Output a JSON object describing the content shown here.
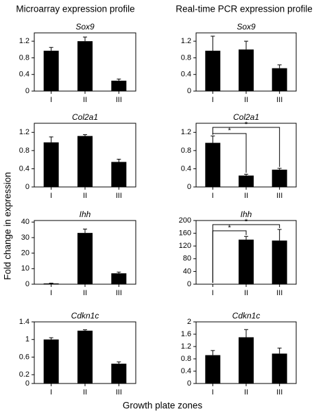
{
  "figure": {
    "column_titles": [
      "Microarray expression profile",
      "Real-time PCR expression profile"
    ],
    "ylabel": "Fold change in expression",
    "xlabel": "Growth plate zones"
  },
  "chart_data": [
    {
      "type": "bar",
      "title": "Sox9",
      "categories": [
        "I",
        "II",
        "III"
      ],
      "values": [
        0.97,
        1.2,
        0.25
      ],
      "errors": [
        0.08,
        0.1,
        0.04
      ],
      "color": "#000000",
      "ylim": [
        0,
        1.4
      ],
      "yticks": [
        0,
        0.4,
        0.8,
        1.2
      ]
    },
    {
      "type": "bar",
      "title": "Sox9",
      "categories": [
        "I",
        "II",
        "III"
      ],
      "values": [
        0.97,
        1.0,
        0.55
      ],
      "errors": [
        0.35,
        0.2,
        0.08
      ],
      "color": "#000000",
      "ylim": [
        0,
        1.4
      ],
      "yticks": [
        0,
        0.4,
        0.8,
        1.2
      ]
    },
    {
      "type": "bar",
      "title": "Col2a1",
      "categories": [
        "I",
        "II",
        "III"
      ],
      "values": [
        0.98,
        1.12,
        0.55
      ],
      "errors": [
        0.12,
        0.03,
        0.06
      ],
      "color": "#000000",
      "ylim": [
        0,
        1.4
      ],
      "yticks": [
        0,
        0.4,
        0.8,
        1.2
      ]
    },
    {
      "type": "bar",
      "title": "Col2a1",
      "categories": [
        "I",
        "II",
        "III"
      ],
      "values": [
        0.97,
        0.25,
        0.38
      ],
      "errors": [
        0.15,
        0.03,
        0.03
      ],
      "color": "#000000",
      "ylim": [
        0,
        1.4
      ],
      "yticks": [
        0,
        0.4,
        0.8,
        1.2
      ],
      "annotations": [
        {
          "text": "*",
          "between": [
            0,
            1
          ]
        },
        {
          "text": "*",
          "between": [
            0,
            2
          ]
        }
      ]
    },
    {
      "type": "bar",
      "title": "Ihh",
      "categories": [
        "I",
        "II",
        "III"
      ],
      "values": [
        0.5,
        33,
        7
      ],
      "errors": [
        0.2,
        2.5,
        0.8
      ],
      "color": "#000000",
      "ylim": [
        0,
        41
      ],
      "yticks": [
        0,
        10,
        20,
        30,
        40
      ]
    },
    {
      "type": "bar",
      "title": "Ihh",
      "categories": [
        "I",
        "II",
        "III"
      ],
      "values": [
        0,
        140,
        137
      ],
      "errors": [
        0,
        10,
        35
      ],
      "color": "#000000",
      "ylim": [
        0,
        200
      ],
      "yticks": [
        0,
        40,
        80,
        120,
        160,
        200
      ],
      "annotations": [
        {
          "text": "*",
          "between": [
            0,
            1
          ]
        },
        {
          "text": "*",
          "between": [
            0,
            2
          ]
        }
      ]
    },
    {
      "type": "bar",
      "title": "Cdkn1c",
      "categories": [
        "I",
        "II",
        "III"
      ],
      "values": [
        1.0,
        1.2,
        0.45
      ],
      "errors": [
        0.04,
        0.02,
        0.04
      ],
      "color": "#000000",
      "ylim": [
        0,
        1.4
      ],
      "yticks": [
        0,
        0.2,
        0.6,
        1,
        1.4
      ]
    },
    {
      "type": "bar",
      "title": "Cdkn1c",
      "categories": [
        "I",
        "II",
        "III"
      ],
      "values": [
        0.92,
        1.5,
        0.97
      ],
      "errors": [
        0.15,
        0.25,
        0.18
      ],
      "color": "#000000",
      "ylim": [
        0,
        2
      ],
      "yticks": [
        0,
        0.4,
        0.8,
        1.2,
        1.6,
        2
      ]
    }
  ]
}
